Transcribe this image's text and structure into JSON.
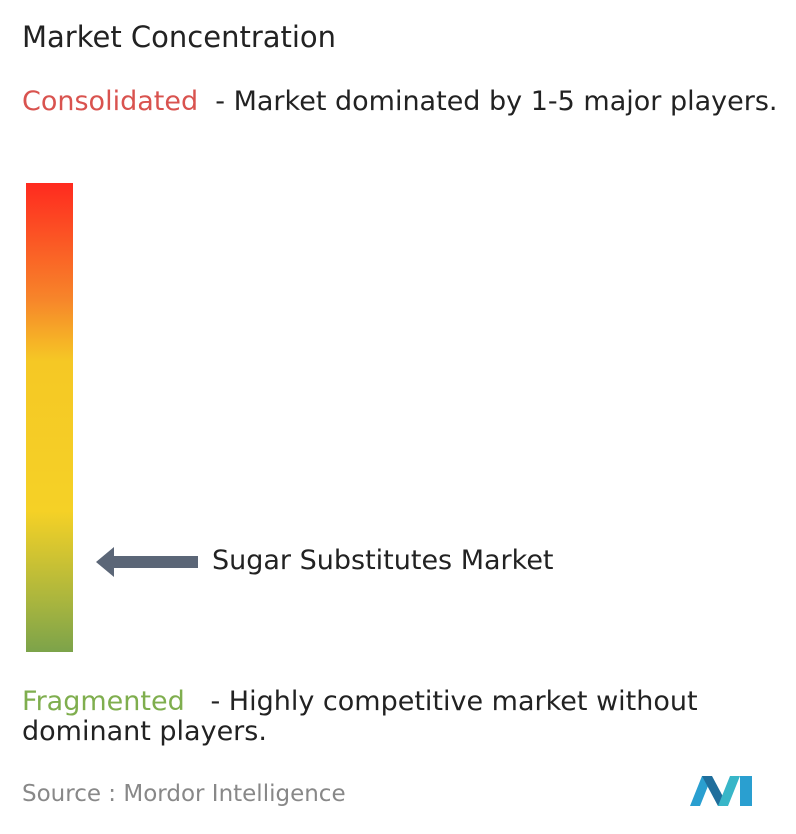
{
  "title": "Market Concentration",
  "consolidated": {
    "label": "Consolidated",
    "description": "- Market dominated by 1-5 major players."
  },
  "fragmented": {
    "label": "Fragmented",
    "description": "- Highly competitive market without dominant players."
  },
  "marker": {
    "label": "Sugar Substitutes Market"
  },
  "source": {
    "prefix": "Source :",
    "name": "Mordor Intelligence"
  }
}
